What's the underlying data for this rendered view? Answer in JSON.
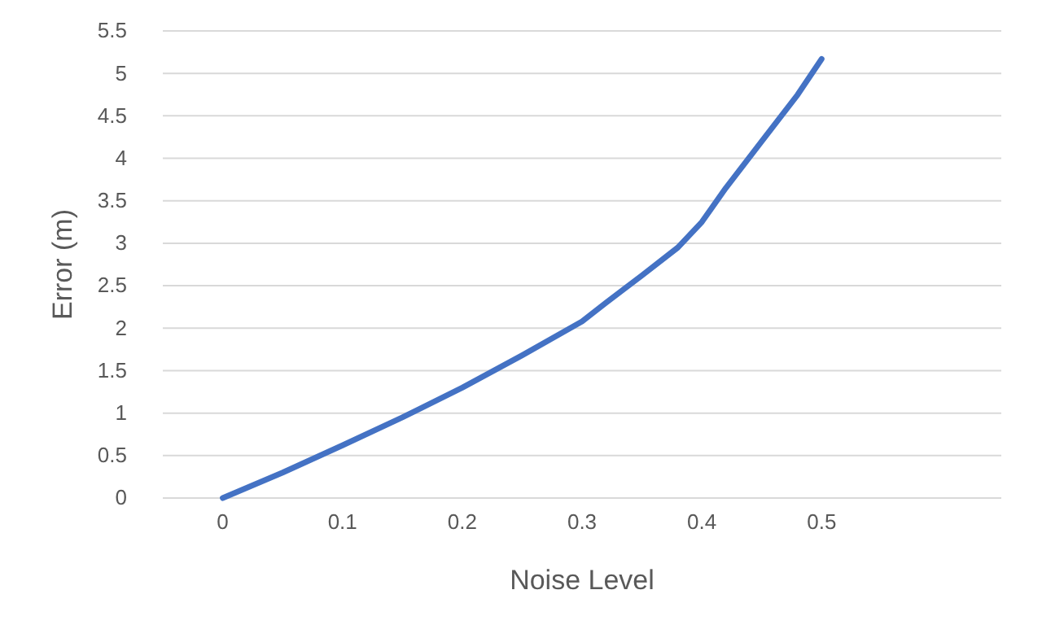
{
  "chart_data": {
    "type": "line",
    "xlabel": "Noise Level",
    "ylabel": "Error (m)",
    "x": [
      0,
      0.05,
      0.1,
      0.15,
      0.2,
      0.25,
      0.3,
      0.32,
      0.35,
      0.38,
      0.4,
      0.42,
      0.45,
      0.48,
      0.5
    ],
    "series": [
      {
        "color": "#4472c4",
        "values": [
          0,
          0.3,
          0.62,
          0.95,
          1.3,
          1.68,
          2.08,
          2.3,
          2.62,
          2.95,
          3.25,
          3.65,
          4.2,
          4.75,
          5.17
        ]
      }
    ],
    "xlim": [
      -0.05,
      0.65
    ],
    "xticks": [
      0,
      0.1,
      0.2,
      0.3,
      0.4,
      0.5
    ],
    "ylim": [
      0,
      5.5
    ],
    "yticks": [
      0,
      0.5,
      1,
      1.5,
      2,
      2.5,
      3,
      3.5,
      4,
      4.5,
      5,
      5.5
    ],
    "grid": "y",
    "marker": "none",
    "line_style": "solid"
  }
}
